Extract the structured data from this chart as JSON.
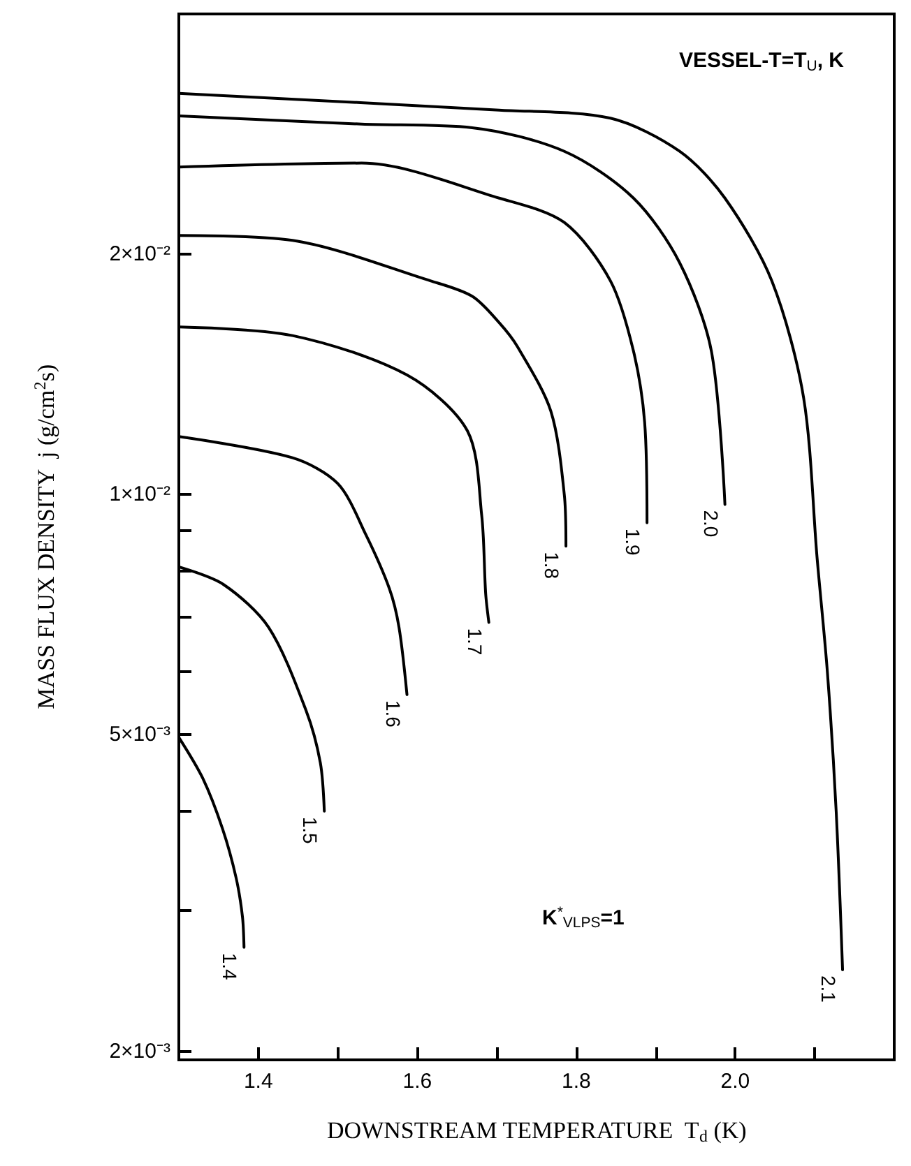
{
  "chart_data": {
    "type": "line",
    "xlabel": "DOWNSTREAM TEMPERATURE  T$_{d}$ (K)",
    "ylabel": "MASS FLUX DENSITY  j (g/cm$^{2}$s)",
    "annotations": [
      "VESSEL-T=T$_{U}$, K",
      "K$^{*}$$_{VLPS}$=1"
    ],
    "xlim": [
      1.3,
      2.2
    ],
    "xticks": [
      {
        "value": 1.4,
        "label": "1.4"
      },
      {
        "value": 1.5,
        "label": null
      },
      {
        "value": 1.6,
        "label": "1.6"
      },
      {
        "value": 1.7,
        "label": null
      },
      {
        "value": 1.8,
        "label": "1.8"
      },
      {
        "value": 1.9,
        "label": null
      },
      {
        "value": 2.0,
        "label": "2.0"
      },
      {
        "value": 2.1,
        "label": null
      }
    ],
    "ylim": [
      0.00195,
      0.04
    ],
    "log": true,
    "yticks": [
      {
        "value": 0.002,
        "label": "2×10⁻³"
      },
      {
        "value": 0.003,
        "label": null
      },
      {
        "value": 0.004,
        "label": null
      },
      {
        "value": 0.005,
        "label": "5×10⁻³"
      },
      {
        "value": 0.006,
        "label": null
      },
      {
        "value": 0.007,
        "label": null
      },
      {
        "value": 0.008,
        "label": null
      },
      {
        "value": 0.009,
        "label": null
      },
      {
        "value": 0.01,
        "label": "1×10⁻²"
      },
      {
        "value": 0.02,
        "label": "2×10⁻²"
      }
    ],
    "grid": false,
    "legend": false,
    "marker": "none",
    "line_style": "solid",
    "series": [
      {
        "name": "1.4",
        "color": "#000000",
        "x": [
          1.3,
          1.33,
          1.355,
          1.372,
          1.38,
          1.382
        ],
        "values": [
          0.00495,
          0.0044,
          0.0038,
          0.0033,
          0.00295,
          0.0027
        ]
      },
      {
        "name": "1.5",
        "color": "#000000",
        "x": [
          1.3,
          1.356,
          1.413,
          1.46,
          1.478,
          1.483
        ],
        "values": [
          0.0081,
          0.0077,
          0.0068,
          0.00535,
          0.0046,
          0.004
        ]
      },
      {
        "name": "1.6",
        "color": "#000000",
        "x": [
          1.3,
          1.443,
          1.5,
          1.535,
          1.565,
          1.577,
          1.587
        ],
        "values": [
          0.0118,
          0.0111,
          0.0103,
          0.0089,
          0.0076,
          0.0068,
          0.0056
        ]
      },
      {
        "name": "1.7",
        "color": "#000000",
        "x": [
          1.3,
          1.443,
          1.587,
          1.663,
          1.681,
          1.686,
          1.69
        ],
        "values": [
          0.0162,
          0.0158,
          0.0141,
          0.012,
          0.0094,
          0.0075,
          0.0069
        ]
      },
      {
        "name": "1.8",
        "color": "#000000",
        "x": [
          1.3,
          1.443,
          1.617,
          1.669,
          1.703,
          1.726,
          1.768,
          1.785,
          1.787
        ],
        "values": [
          0.0211,
          0.0208,
          0.0185,
          0.0177,
          0.0164,
          0.0153,
          0.0127,
          0.00996,
          0.0086
        ]
      },
      {
        "name": "1.9",
        "color": "#000000",
        "x": [
          1.3,
          1.53,
          1.703,
          1.785,
          1.843,
          1.872,
          1.886,
          1.889
        ],
        "values": [
          0.0257,
          0.026,
          0.0235,
          0.0219,
          0.0185,
          0.0151,
          0.0123,
          0.0092
        ]
      },
      {
        "name": "2.0",
        "color": "#000000",
        "x": [
          1.3,
          1.53,
          1.669,
          1.785,
          1.872,
          1.93,
          1.97,
          1.987
        ],
        "values": [
          0.0298,
          0.0291,
          0.0288,
          0.0269,
          0.0235,
          0.0195,
          0.0151,
          0.0097
        ]
      },
      {
        "name": "2.1",
        "color": "#000000",
        "x": [
          1.3,
          1.703,
          1.843,
          1.93,
          1.987,
          2.046,
          2.086,
          2.103,
          2.116,
          2.127,
          2.135
        ],
        "values": [
          0.0318,
          0.0303,
          0.0296,
          0.0269,
          0.0235,
          0.0185,
          0.0132,
          0.0083,
          0.00596,
          0.00399,
          0.00253
        ]
      }
    ]
  }
}
